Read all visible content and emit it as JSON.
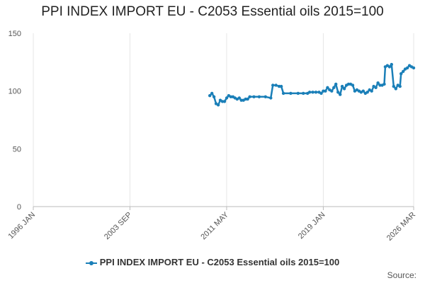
{
  "chart_data": {
    "type": "line",
    "title": "PPI INDEX IMPORT EU - C2053 Essential oils 2015=100",
    "xlabel": "",
    "ylabel": "",
    "ylim": [
      0,
      150
    ],
    "y_ticks": [
      0,
      50,
      100,
      150
    ],
    "x_range": [
      "1996 JAN",
      "2026 MAR"
    ],
    "x_ticks": [
      "1996 JAN",
      "2003 SEP",
      "2011 MAY",
      "2019 JAN",
      "2026 MAR"
    ],
    "grid": {
      "x": true,
      "y": false
    },
    "legend_position": "bottom",
    "color": "#1a7fb8",
    "series": [
      {
        "name": "PPI INDEX IMPORT EU - C2053 Essential oils 2015=100",
        "points": [
          [
            "2010 JAN",
            96
          ],
          [
            "2010 MAR",
            98
          ],
          [
            "2010 MAY",
            95
          ],
          [
            "2010 JUL",
            89
          ],
          [
            "2010 SEP",
            88
          ],
          [
            "2010 NOV",
            92
          ],
          [
            "2011 JAN",
            91
          ],
          [
            "2011 MAR",
            91
          ],
          [
            "2011 MAY",
            94
          ],
          [
            "2011 JUL",
            96
          ],
          [
            "2011 SEP",
            95
          ],
          [
            "2011 NOV",
            95
          ],
          [
            "2012 JAN",
            94
          ],
          [
            "2012 MAR",
            93
          ],
          [
            "2012 MAY",
            94
          ],
          [
            "2012 JUL",
            92
          ],
          [
            "2012 SEP",
            92
          ],
          [
            "2012 NOV",
            93
          ],
          [
            "2013 JAN",
            93
          ],
          [
            "2013 MAR",
            95
          ],
          [
            "2013 JUL",
            95
          ],
          [
            "2013 DEC",
            95
          ],
          [
            "2014 JUN",
            95
          ],
          [
            "2014 NOV",
            94
          ],
          [
            "2015 JAN",
            105
          ],
          [
            "2015 APR",
            105
          ],
          [
            "2015 JUL",
            104
          ],
          [
            "2015 SEP",
            104
          ],
          [
            "2015 NOV",
            98
          ],
          [
            "2016 JUN",
            98
          ],
          [
            "2017 JAN",
            98
          ],
          [
            "2017 JUN",
            98
          ],
          [
            "2017 OCT",
            98
          ],
          [
            "2017 DEC",
            99
          ],
          [
            "2018 MAR",
            99
          ],
          [
            "2018 JUN",
            99
          ],
          [
            "2018 SEP",
            99
          ],
          [
            "2018 NOV",
            98
          ],
          [
            "2019 JAN",
            100
          ],
          [
            "2019 MAR",
            100
          ],
          [
            "2019 MAY",
            103
          ],
          [
            "2019 JUL",
            101
          ],
          [
            "2019 SEP",
            100
          ],
          [
            "2019 NOV",
            103
          ],
          [
            "2020 JAN",
            106
          ],
          [
            "2020 MAR",
            99
          ],
          [
            "2020 MAY",
            97
          ],
          [
            "2020 JUL",
            104
          ],
          [
            "2020 SEP",
            102
          ],
          [
            "2020 NOV",
            105
          ],
          [
            "2021 JAN",
            106
          ],
          [
            "2021 MAR",
            106
          ],
          [
            "2021 MAY",
            105
          ],
          [
            "2021 JUL",
            100
          ],
          [
            "2021 SEP",
            101
          ],
          [
            "2021 NOV",
            100
          ],
          [
            "2022 JAN",
            99
          ],
          [
            "2022 MAR",
            100
          ],
          [
            "2022 MAY",
            98
          ],
          [
            "2022 JUL",
            99
          ],
          [
            "2022 SEP",
            101
          ],
          [
            "2022 NOV",
            100
          ],
          [
            "2023 JAN",
            104
          ],
          [
            "2023 MAR",
            103
          ],
          [
            "2023 MAY",
            107
          ],
          [
            "2023 JUL",
            105
          ],
          [
            "2023 SEP",
            105
          ],
          [
            "2023 NOV",
            106
          ],
          [
            "2023 DEC",
            121
          ],
          [
            "2024 FEB",
            122
          ],
          [
            "2024 APR",
            121
          ],
          [
            "2024 JUN",
            123
          ],
          [
            "2024 AUG",
            104
          ],
          [
            "2024 OCT",
            102
          ],
          [
            "2024 DEC",
            105
          ],
          [
            "2025 FEB",
            104
          ],
          [
            "2025 MAR",
            115
          ],
          [
            "2025 MAY",
            117
          ],
          [
            "2025 JUL",
            119
          ],
          [
            "2025 SEP",
            120
          ],
          [
            "2025 NOV",
            122
          ],
          [
            "2026 JAN",
            121
          ],
          [
            "2026 MAR",
            120
          ]
        ]
      }
    ],
    "source_label": "Source:"
  }
}
